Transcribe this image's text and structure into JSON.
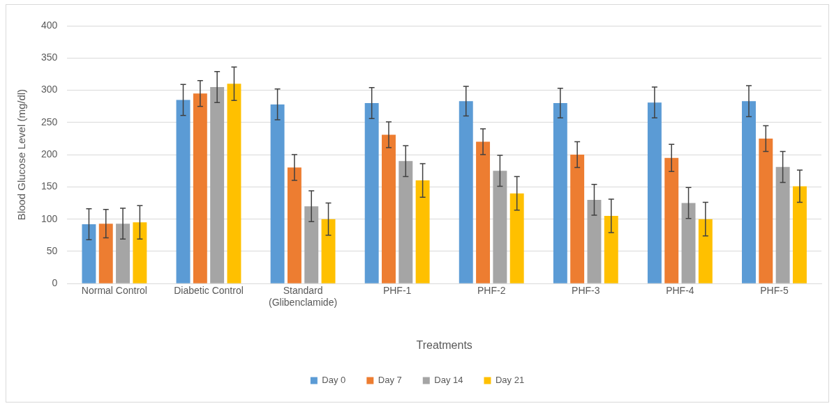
{
  "chart_data": {
    "type": "bar",
    "xlabel": "Treatments",
    "ylabel": "Blood Glucose Level (mg/dl)",
    "categories": [
      "Normal Control",
      "Diabetic Control",
      "Standard\n(Glibenclamide)",
      "PHF-1",
      "PHF-2",
      "PHF-3",
      "PHF-4",
      "PHF-5"
    ],
    "series": [
      {
        "name": "Day 0",
        "color": "#5b9bd5",
        "values": [
          92,
          285,
          278,
          280,
          283,
          280,
          281,
          283
        ],
        "errors": [
          24,
          24,
          24,
          24,
          23,
          23,
          24,
          24
        ]
      },
      {
        "name": "Day 7",
        "color": "#ed7d31",
        "values": [
          93,
          295,
          180,
          231,
          220,
          200,
          195,
          225
        ],
        "errors": [
          22,
          20,
          20,
          20,
          20,
          20,
          21,
          20
        ]
      },
      {
        "name": "Day 14",
        "color": "#a5a5a5",
        "values": [
          93,
          305,
          120,
          190,
          175,
          130,
          125,
          181
        ],
        "errors": [
          24,
          24,
          24,
          24,
          24,
          24,
          24,
          24
        ]
      },
      {
        "name": "Day 21",
        "color": "#ffc000",
        "values": [
          95,
          310,
          100,
          160,
          140,
          105,
          100,
          151
        ],
        "errors": [
          26,
          26,
          25,
          26,
          26,
          26,
          26,
          25
        ]
      }
    ],
    "ylim": [
      0,
      400
    ],
    "yticks": [
      0,
      50,
      100,
      150,
      200,
      250,
      300,
      350,
      400
    ],
    "grid": "y",
    "legend": "bottom"
  }
}
